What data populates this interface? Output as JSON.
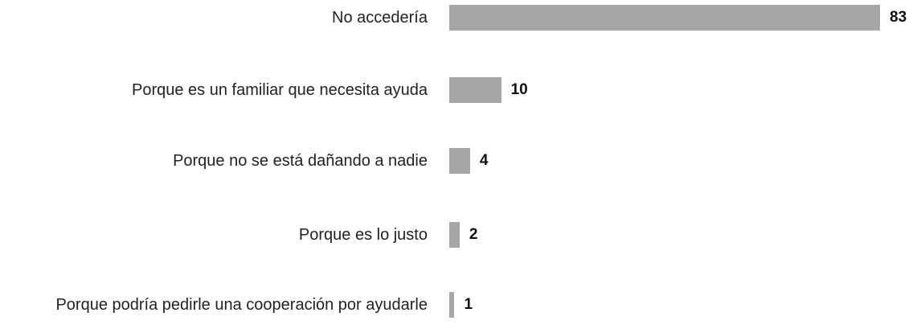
{
  "chart_data": {
    "type": "bar",
    "orientation": "horizontal",
    "categories": [
      "No accedería",
      "Porque es un familiar que necesita ayuda",
      "Porque no se está dañando a nadie",
      "Porque es lo justo",
      "Porque podría pedirle una cooperación por ayudarle"
    ],
    "values": [
      83,
      10,
      4,
      2,
      1
    ],
    "color": "#a6a6a6"
  }
}
